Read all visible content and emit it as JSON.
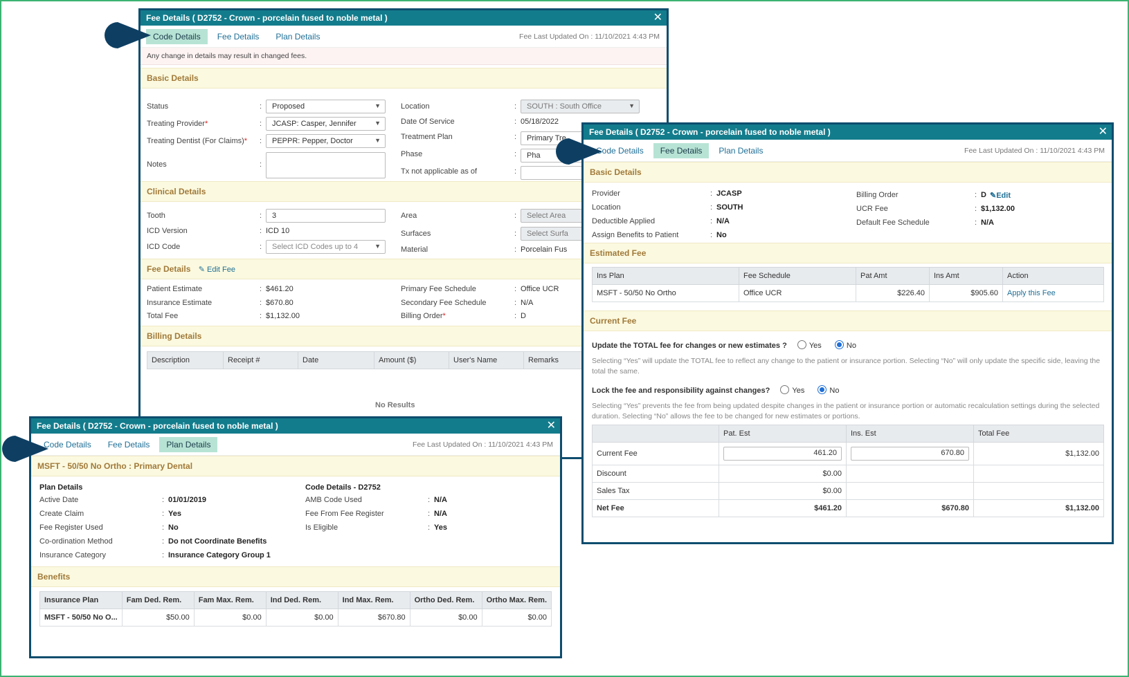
{
  "colors": {
    "title_bar": "#137c8c",
    "dialog_border": "#0e4d6e",
    "active_tab": "#b7e3d5",
    "section_bg": "#fbf9df",
    "section_text": "#a17a3a",
    "link": "#1f6f96",
    "pointer": "#0e3f63"
  },
  "dlg1": {
    "title": "Fee Details ( D2752 - Crown - porcelain fused to noble metal )",
    "tabs": [
      "Code Details",
      "Fee Details",
      "Plan Details"
    ],
    "fee_updated": "Fee Last Updated On : 11/10/2021 4:43 PM",
    "warning": "Any change in details may result in changed fees.",
    "basic_title": "Basic Details",
    "status_label": "Status",
    "status_value": "Proposed",
    "provider_label": "Treating Provider",
    "provider_value": "JCASP: Casper, Jennifer",
    "dentist_label": "Treating Dentist (For Claims)",
    "dentist_value": "PEPPR: Pepper, Doctor",
    "notes_label": "Notes",
    "location_label": "Location",
    "location_value": "SOUTH : South Office",
    "dos_label": "Date Of Service",
    "dos_value": "05/18/2022",
    "plan_label": "Treatment Plan",
    "plan_value": "Primary Tre",
    "phase_label": "Phase",
    "phase_value": "Pha",
    "txna_label": "Tx not applicable as of",
    "clinical_title": "Clinical Details",
    "tooth_label": "Tooth",
    "tooth_value": "3",
    "icdver_label": "ICD Version",
    "icdver_value": "ICD 10",
    "icdcode_label": "ICD Code",
    "icdcode_placeholder": "Select ICD Codes up to 4",
    "area_label": "Area",
    "area_placeholder": "Select Area",
    "surfaces_label": "Surfaces",
    "surfaces_placeholder": "Select Surfa",
    "material_label": "Material",
    "material_value": "Porcelain Fus",
    "fee_title": "Fee Details",
    "edit_fee": "Edit Fee",
    "pat_est_label": "Patient Estimate",
    "pat_est_value": "$461.20",
    "ins_est_label": "Insurance Estimate",
    "ins_est_value": "$670.80",
    "total_fee_label": "Total Fee",
    "total_fee_value": "$1,132.00",
    "pfs_label": "Primary Fee Schedule",
    "pfs_value": "Office UCR",
    "sfs_label": "Secondary Fee Schedule",
    "sfs_value": "N/A",
    "border_label": "Billing Order",
    "border_value": "D",
    "billing_title": "Billing Details",
    "billing_headers": [
      "Description",
      "Receipt #",
      "Date",
      "Amount ($)",
      "User's Name",
      "Remarks"
    ],
    "no_results": "No Results"
  },
  "dlg2": {
    "title": "Fee Details ( D2752 - Crown - porcelain fused to noble metal )",
    "tabs": [
      "Code Details",
      "Fee Details",
      "Plan Details"
    ],
    "fee_updated": "Fee Last Updated On : 11/10/2021 4:43 PM",
    "basic_title": "Basic Details",
    "provider_label": "Provider",
    "provider_value": "JCASP",
    "location_label": "Location",
    "location_value": "SOUTH",
    "deductible_label": "Deductible Applied",
    "deductible_value": "N/A",
    "assign_label": "Assign Benefits to Patient",
    "assign_value": "No",
    "border_label": "Billing Order",
    "border_value": "D",
    "edit": "Edit",
    "ucr_label": "UCR Fee",
    "ucr_value": "$1,132.00",
    "dfs_label": "Default Fee Schedule",
    "dfs_value": "N/A",
    "est_title": "Estimated Fee",
    "est_headers": [
      "Ins Plan",
      "Fee Schedule",
      "Pat Amt",
      "Ins Amt",
      "Action"
    ],
    "est_row": [
      "MSFT - 50/50 No Ortho",
      "Office UCR",
      "$226.40",
      "$905.60",
      "Apply this Fee"
    ],
    "cur_title": "Current Fee",
    "q1": "Update the TOTAL fee for changes or new estimates ?",
    "yes": "Yes",
    "no": "No",
    "help1": "Selecting “Yes” will update the TOTAL fee to reflect any change to the patient or insurance portion. Selecting “No” will only update the specific side, leaving the total the same.",
    "q2": "Lock the fee and responsibility against changes?",
    "help2": "Selecting “Yes” prevents the fee from being updated despite changes in the patient or insurance portion or automatic recalculation settings during the selected duration. Selecting “No” allows the fee to be changed for new estimates or portions.",
    "cf_headers": [
      "",
      "Pat. Est",
      "Ins. Est",
      "Total Fee"
    ],
    "cf_rows": [
      {
        "label": "Current Fee",
        "pat": "461.20",
        "ins": "670.80",
        "total": "$1,132.00"
      },
      {
        "label": "Discount",
        "pat": "$0.00",
        "ins": "",
        "total": ""
      },
      {
        "label": "Sales Tax",
        "pat": "$0.00",
        "ins": "",
        "total": ""
      },
      {
        "label": "Net Fee",
        "pat": "$461.20",
        "ins": "$670.80",
        "total": "$1,132.00"
      }
    ]
  },
  "dlg3": {
    "title": "Fee Details ( D2752 - Crown - porcelain fused to noble metal )",
    "tabs": [
      "Code Details",
      "Fee Details",
      "Plan Details"
    ],
    "fee_updated": "Fee Last Updated On : 11/10/2021 4:43 PM",
    "plan_title": "MSFT - 50/50 No Ortho : Primary Dental",
    "pd_title": "Plan Details",
    "active_label": "Active Date",
    "active_value": "01/01/2019",
    "claim_label": "Create Claim",
    "claim_value": "Yes",
    "feereg_label": "Fee Register Used",
    "feereg_value": "No",
    "coord_label": "Co-ordination Method",
    "coord_value": "Do not Coordinate Benefits",
    "inscat_label": "Insurance Category",
    "inscat_value": "Insurance Category Group 1",
    "cd_title": "Code Details - D2752",
    "amb_label": "AMB Code Used",
    "amb_value": "N/A",
    "ffr_label": "Fee From Fee Register",
    "ffr_value": "N/A",
    "elig_label": "Is Eligible",
    "elig_value": "Yes",
    "benefits_title": "Benefits",
    "ben_headers": [
      "Insurance Plan",
      "Fam Ded. Rem.",
      "Fam Max. Rem.",
      "Ind Ded. Rem.",
      "Ind Max. Rem.",
      "Ortho Ded. Rem.",
      "Ortho Max. Rem."
    ],
    "ben_row": [
      "MSFT - 50/50 No O...",
      "$50.00",
      "$0.00",
      "$0.00",
      "$670.80",
      "$0.00",
      "$0.00"
    ]
  }
}
